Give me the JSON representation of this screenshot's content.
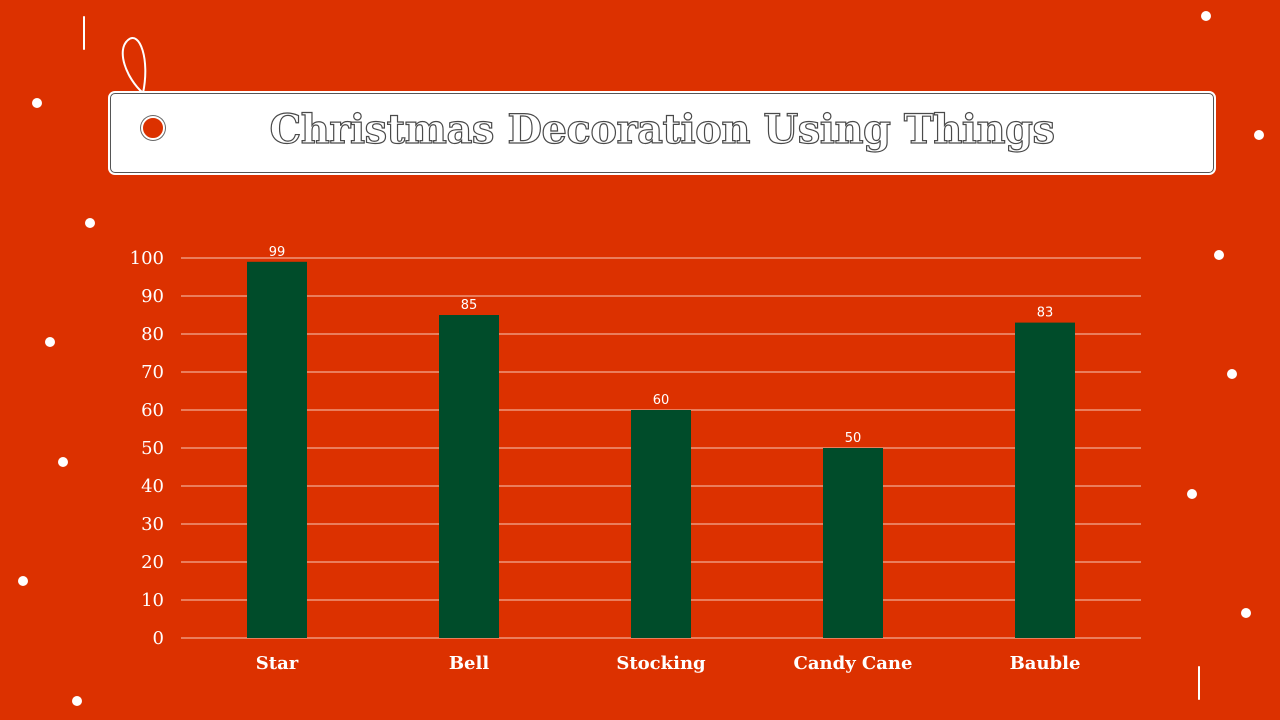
{
  "theme": {
    "background": "#dc3100",
    "bar_color": "#004c2a",
    "text_color": "#ffffff",
    "grid_color": "#f7c9b8"
  },
  "slide": {
    "title": "Christmas Decoration Using Things"
  },
  "chart_data": {
    "type": "bar",
    "categories": [
      "Star",
      "Bell",
      "Stocking",
      "Candy Cane",
      "Bauble"
    ],
    "values": [
      99,
      85,
      60,
      50,
      83
    ],
    "data_labels": [
      "99",
      "85",
      "60",
      "50",
      "83"
    ],
    "ylim": [
      0,
      100
    ],
    "yticks": [
      0,
      10,
      20,
      30,
      40,
      50,
      60,
      70,
      80,
      90,
      100
    ],
    "grid": true,
    "legend": "none",
    "title": "",
    "xlabel": "",
    "ylabel": ""
  }
}
